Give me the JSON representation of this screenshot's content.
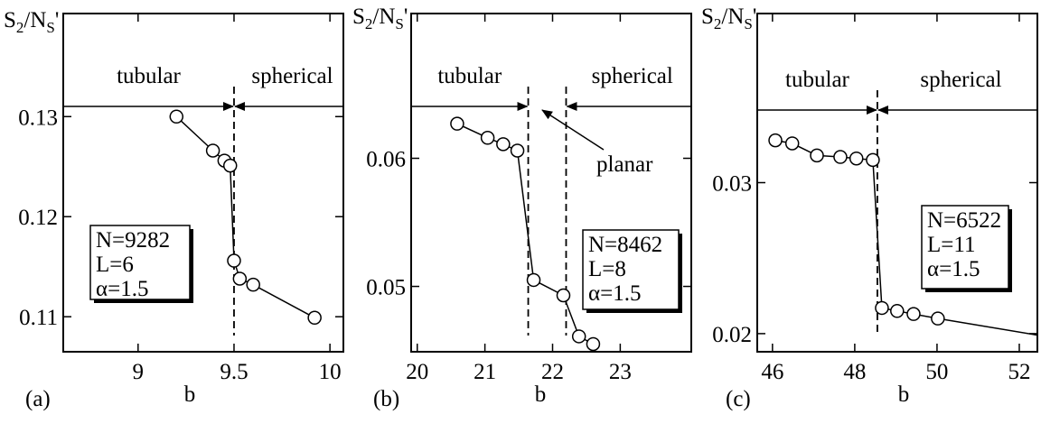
{
  "chart_data": [
    {
      "type": "line",
      "panel_label": "(a)",
      "xlabel": "b",
      "ylabel": [
        "S",
        "2",
        "/N",
        "S",
        "'"
      ],
      "xlim": [
        8.61,
        10.07
      ],
      "ylim": [
        0.1065,
        0.1403
      ],
      "xticks": [
        9,
        9.5,
        10
      ],
      "yticks": [
        0.11,
        0.12,
        0.13
      ],
      "x": [
        9.2,
        9.39,
        9.45,
        9.48,
        9.5,
        9.53,
        9.6,
        9.92
      ],
      "values": [
        0.13,
        0.1266,
        0.1256,
        0.1251,
        0.1156,
        0.1138,
        0.1132,
        0.1099
      ],
      "color": "#000000",
      "boundaries": [
        9.5
      ],
      "left_label": "tubular",
      "right_label": "spherical",
      "box_lines": [
        "N=9282",
        "L=6",
        "α=1.5"
      ]
    },
    {
      "type": "line",
      "panel_label": "(b)",
      "xlabel": "b",
      "ylabel": [
        "S",
        "2",
        "/N",
        "S",
        "'"
      ],
      "xlim": [
        19.91,
        24.05
      ],
      "ylim": [
        0.0449,
        0.0713
      ],
      "xticks": [
        20,
        21,
        22,
        23
      ],
      "yticks": [
        0.05,
        0.06
      ],
      "x": [
        20.59,
        21.04,
        21.27,
        21.48,
        21.72,
        22.16,
        22.39,
        22.6
      ],
      "values": [
        0.0627,
        0.0616,
        0.0611,
        0.0606,
        0.0505,
        0.0493,
        0.0461,
        0.0455
      ],
      "color": "#000000",
      "boundaries": [
        21.64,
        22.2
      ],
      "left_label": "tubular",
      "right_label": "spherical",
      "middle_label": "planar",
      "box_lines": [
        "N=8462",
        "L=8",
        "α=1.5"
      ]
    },
    {
      "type": "line",
      "panel_label": "(c)",
      "xlabel": "b",
      "ylabel": [
        "S",
        "2",
        "/N",
        "S",
        "'"
      ],
      "xlim": [
        45.63,
        52.44
      ],
      "ylim": [
        0.0188,
        0.0412
      ],
      "xticks": [
        46,
        48,
        50,
        52
      ],
      "yticks": [
        0.02,
        0.03
      ],
      "x": [
        46.07,
        46.48,
        47.08,
        47.65,
        48.04,
        48.44,
        48.66,
        49.03,
        49.43,
        50.02
      ],
      "values": [
        0.0328,
        0.0326,
        0.0318,
        0.0317,
        0.0316,
        0.0315,
        0.0217,
        0.0215,
        0.0213,
        0.021
      ],
      "line_end": {
        "x": 52.44,
        "y": 0.0199
      },
      "color": "#000000",
      "boundaries": [
        48.55
      ],
      "left_label": "tubular",
      "right_label": "spherical",
      "box_lines": [
        "N=6522",
        "L=11",
        "α=1.5"
      ]
    }
  ]
}
